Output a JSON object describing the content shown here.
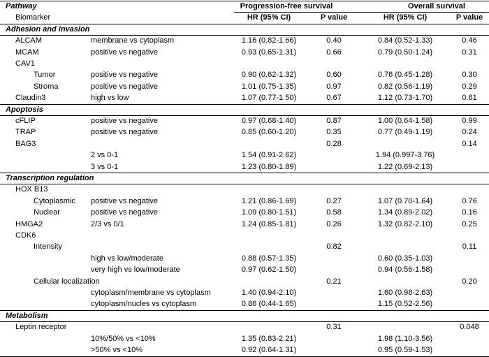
{
  "header": {
    "pathway": "Pathway",
    "pfs": "Progression-free survival",
    "os": "Overall survival",
    "biomarker": "Biomarker",
    "columns": [
      "HR (95% CI)",
      "P value",
      "HR (95% CI)",
      "P value"
    ]
  },
  "sections": [
    {
      "title": "Adhesion and invasion",
      "rows": [
        {
          "biomarker": "ALCAM",
          "comparison": "membrane vs cytoplasm",
          "pfs_hr": "1.16 (0.82-1.66)",
          "pfs_p": "0.40",
          "os_hr": "0.84 (0.52-1.33)",
          "os_p": "0.46"
        },
        {
          "biomarker": "MCAM",
          "comparison": "positive vs negative",
          "pfs_hr": "0.93 (0.65-1.31)",
          "pfs_p": "0.66",
          "os_hr": "0.79 (0.50-1.24)",
          "os_p": "0.31"
        },
        {
          "biomarker": "CAV1",
          "rows": [
            {
              "biomarker": "Tumor",
              "comparison": "positive vs negative",
              "pfs_hr": "0.90 (0.62-1.32)",
              "pfs_p": "0.60",
              "os_hr": "0.76 (0.45-1.28)",
              "os_p": "0.30"
            },
            {
              "biomarker": "Stroma",
              "comparison": "positive vs negative",
              "pfs_hr": "1.01 (0.75-1.35)",
              "pfs_p": "0.97",
              "os_hr": "0.82 (0.56-1.19)",
              "os_p": "0.29"
            }
          ]
        },
        {
          "biomarker": "Claudin3",
          "comparison": "high vs low",
          "pfs_hr": "1.07 (0.77-1.50)",
          "pfs_p": "0.67",
          "os_hr": "1.12 (0.73-1.70)",
          "os_p": "0.61"
        }
      ]
    },
    {
      "title": "Apoptosis",
      "rows": [
        {
          "biomarker": "cFLIP",
          "comparison": "positive vs negative",
          "pfs_hr": "0.97 (0.68-1.40)",
          "pfs_p": "0.87",
          "os_hr": "1.00 (0.64-1.58)",
          "os_p": "0.99"
        },
        {
          "biomarker": "TRAP",
          "comparison": "positive vs negative",
          "pfs_hr": "0.85 (0.60-1.20)",
          "pfs_p": "0.35",
          "os_hr": "0.77 (0.49-1.19)",
          "os_p": "0.24"
        },
        {
          "biomarker": "BAG3",
          "pfs_p": "0.28",
          "os_p": "0.14",
          "rows": [
            {
              "comparison": "2 vs 0-1",
              "pfs_hr": "1.54 (0.91-2.62)",
              "os_hr": "1.94 (0.997-3.76)"
            },
            {
              "comparison": "3 vs 0-1",
              "pfs_hr": "1.23 (0.80-1.89)",
              "os_hr": "1.22 (0.69-2.13)"
            }
          ]
        }
      ]
    },
    {
      "title": "Transcription regulation",
      "rows": [
        {
          "biomarker": "HOX B13",
          "rows": [
            {
              "biomarker": "Cytoplasmic",
              "comparison": "positive vs negative",
              "pfs_hr": "1.21 (0.86-1.69)",
              "pfs_p": "0.27",
              "os_hr": "1.07 (0.70-1.64)",
              "os_p": "0.76"
            },
            {
              "biomarker": "Nuclear",
              "comparison": "positive vs negative",
              "pfs_hr": "1.09 (0.80-1.51)",
              "pfs_p": "0.58",
              "os_hr": "1.34 (0.89-2.02)",
              "os_p": "0.16"
            }
          ]
        },
        {
          "biomarker": "HMGA2",
          "comparison": "2/3 vs 0/1",
          "pfs_hr": "1.24 (0.85-1.81)",
          "pfs_p": "0.26",
          "os_hr": "1.32 (0.82-2.10)",
          "os_p": "0.25"
        },
        {
          "biomarker": "CDK6",
          "rows": [
            {
              "biomarker": "Intensity",
              "pfs_p": "0.82",
              "os_p": "0.11",
              "rows": [
                {
                  "comparison": "high vs low/moderate",
                  "pfs_hr": "0.88 (0.57-1.35)",
                  "os_hr": "0.60 (0.35-1.03)"
                },
                {
                  "comparison": "very high vs low/moderate",
                  "pfs_hr": "0.97 (0.62-1.50)",
                  "os_hr": "0.94 (0.56-1.58)"
                }
              ]
            },
            {
              "biomarker": "Cellular localization",
              "pfs_p": "0.21",
              "os_p": "0.20",
              "rows": [
                {
                  "comparison": "cytoplasm/membrane vs cytoplasm",
                  "pfs_hr": "1.40 (0.94-2.10)",
                  "os_hr": "1.60 (0.98-2.63)"
                },
                {
                  "comparison": "cytoplasm/nucles vs cytoplasm",
                  "pfs_hr": "0.86 (0.44-1.65)",
                  "os_hr": "1.15 (0.52-2.56)"
                }
              ]
            }
          ]
        }
      ]
    },
    {
      "title": "Metabolism",
      "rows": [
        {
          "biomarker": "Leptin receptor",
          "pfs_p": "0.31",
          "os_p": "0.048",
          "rows": [
            {
              "comparison": "10%/50% vs <10%",
              "pfs_hr": "1.35 (0.83-2.21)",
              "os_hr": "1.98 (1.10-3.56)"
            },
            {
              "comparison": ">50% vs <10%",
              "pfs_hr": "0.92 (0.64-1.31)",
              "os_hr": "0.95 (0.59-1.53)"
            }
          ]
        }
      ]
    }
  ]
}
